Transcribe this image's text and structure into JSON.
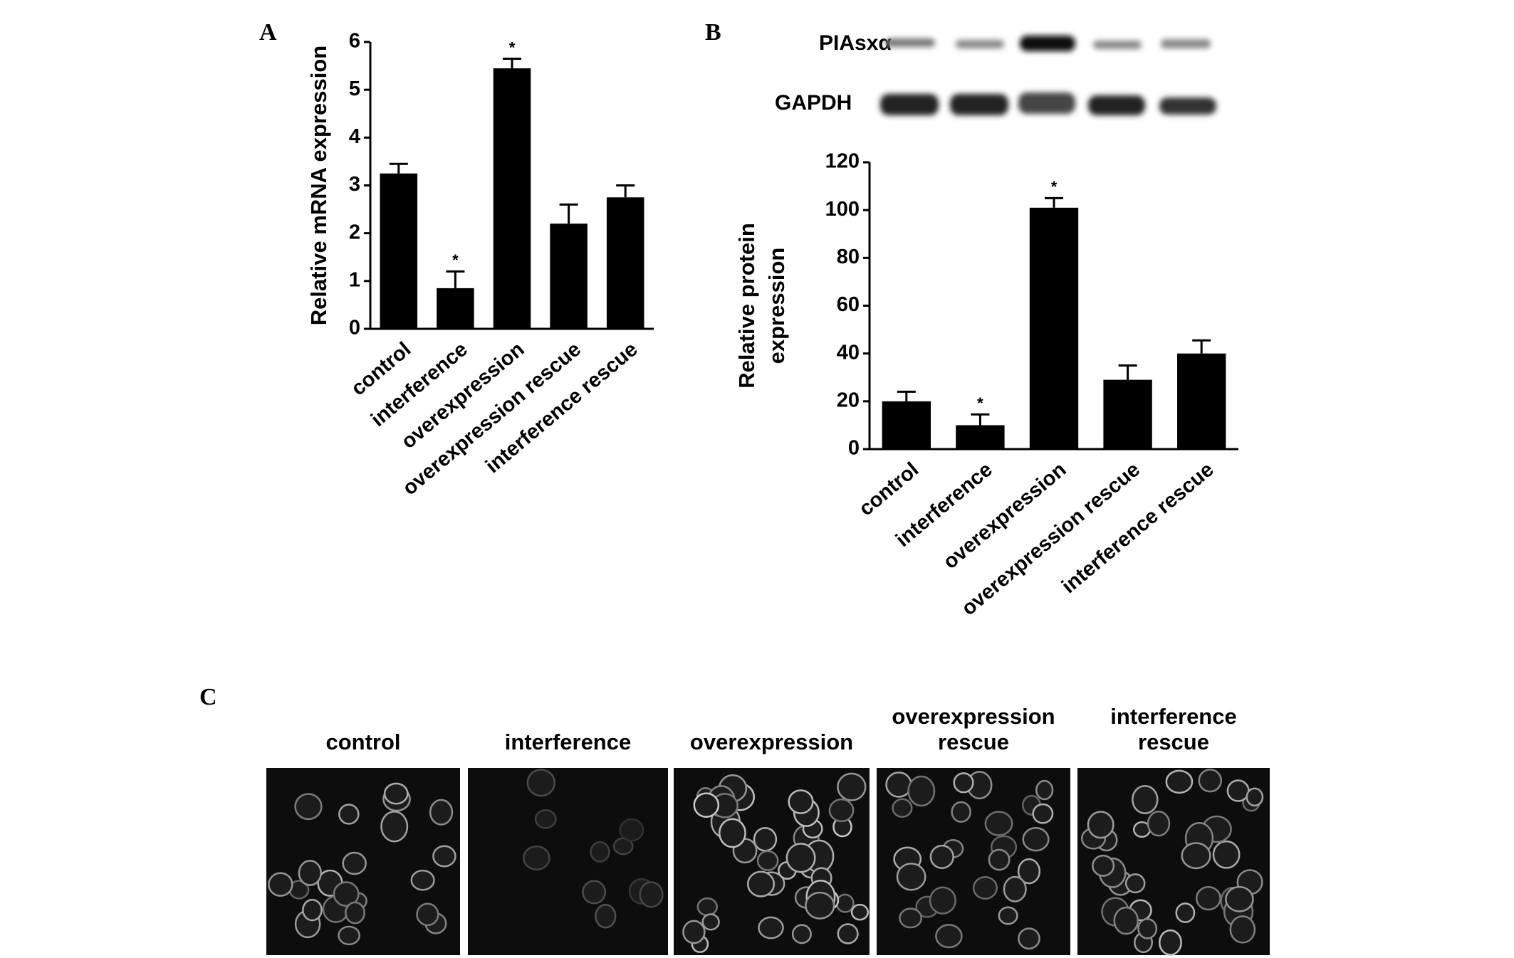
{
  "panel_labels": [
    "A",
    "B",
    "C"
  ],
  "chart_data": [
    {
      "type": "bar",
      "y_label": [
        "Relative mRNA expression"
      ],
      "categories": [
        "control",
        "interference",
        "overexpression",
        "overexpression rescue",
        "interference rescue"
      ],
      "values": [
        3.25,
        0.85,
        5.45,
        2.2,
        2.75
      ],
      "errors": [
        0.2,
        0.35,
        0.2,
        0.4,
        0.25
      ],
      "significance": [
        null,
        "*",
        "*",
        null,
        null
      ],
      "color": "#000000",
      "ylim": [
        0,
        6
      ],
      "yticks": [
        0,
        1,
        2,
        3,
        4,
        5,
        6
      ]
    },
    {
      "type": "bar",
      "y_label": [
        "Relative protein",
        "expression"
      ],
      "categories": [
        "control",
        "interference",
        "overexpression",
        "overexpression rescue",
        "interference  rescue"
      ],
      "values": [
        20,
        10,
        101,
        29,
        40
      ],
      "errors": [
        4,
        4.5,
        4,
        6,
        5.5
      ],
      "significance": [
        null,
        "*",
        "*",
        null,
        null
      ],
      "color": "#000000",
      "ylim": [
        0,
        120
      ],
      "yticks": [
        0,
        20,
        40,
        60,
        80,
        100,
        120
      ]
    }
  ],
  "blot": {
    "labels": [
      "PIAsxα",
      "GAPDH"
    ]
  },
  "images": {
    "titles": [
      [
        "control"
      ],
      [
        "interference"
      ],
      [
        "overexpression"
      ],
      [
        "overexpression",
        "rescue"
      ],
      [
        "interference",
        "rescue"
      ]
    ]
  }
}
